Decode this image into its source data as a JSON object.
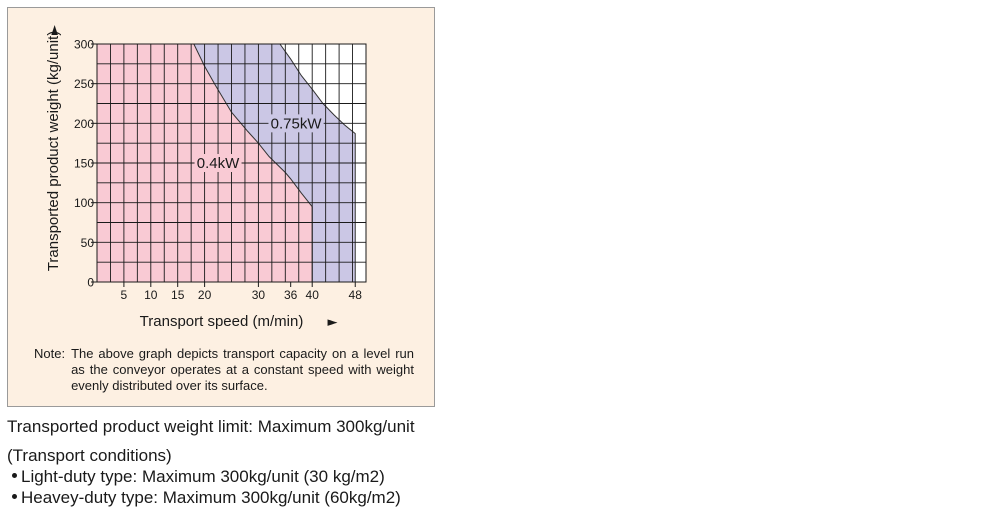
{
  "chart_data": {
    "type": "area",
    "xlabel": "Transport speed (m/min)",
    "xlabel_arrow": "►",
    "ylabel": "Transported product weight (kg/unit)",
    "ylabel_arrow": "►",
    "xlim": [
      0,
      50
    ],
    "ylim": [
      0,
      300
    ],
    "x_ticks": [
      5,
      10,
      15,
      20,
      30,
      36,
      40,
      48
    ],
    "y_ticks": [
      0,
      50,
      100,
      150,
      200,
      250,
      300
    ],
    "grid": true,
    "series": [
      {
        "name": "0.4kW",
        "fill": "#f9cad4",
        "x": [
          0,
          18,
          20,
          22,
          25,
          28,
          30,
          32,
          35,
          36,
          38,
          40,
          40
        ],
        "y": [
          300,
          300,
          272,
          248,
          214,
          190,
          175,
          158,
          138,
          130,
          112,
          95,
          0
        ]
      },
      {
        "name": "0.75kW",
        "fill": "#cbc7e5",
        "x": [
          0,
          34,
          36,
          38,
          40,
          42,
          44,
          46,
          48,
          48
        ],
        "y": [
          300,
          300,
          281,
          260,
          243,
          225,
          211,
          198,
          187,
          0
        ]
      }
    ],
    "annotations": [
      {
        "label": "0.4kW",
        "x": 22.5,
        "y": 150
      },
      {
        "label": "0.75kW",
        "x": 37,
        "y": 200
      }
    ],
    "colors": {
      "panel_background": "#fdf0e2",
      "plot_background": "#ffffff",
      "grid": "#1a1a1a"
    }
  },
  "note": {
    "label": "Note:",
    "text": "The above graph depicts transport capacity on a level run as the conveyor operates at a constant speed with weight evenly distributed over its surface."
  },
  "limit_text": "Transported product weight limit: Maximum 300kg/unit",
  "conditions": {
    "title": "(Transport conditions)",
    "items": [
      "Light-duty type: Maximum 300kg/unit (30 kg/m2)",
      "Heavey-duty type: Maximum 300kg/unit (60kg/m2)"
    ]
  }
}
